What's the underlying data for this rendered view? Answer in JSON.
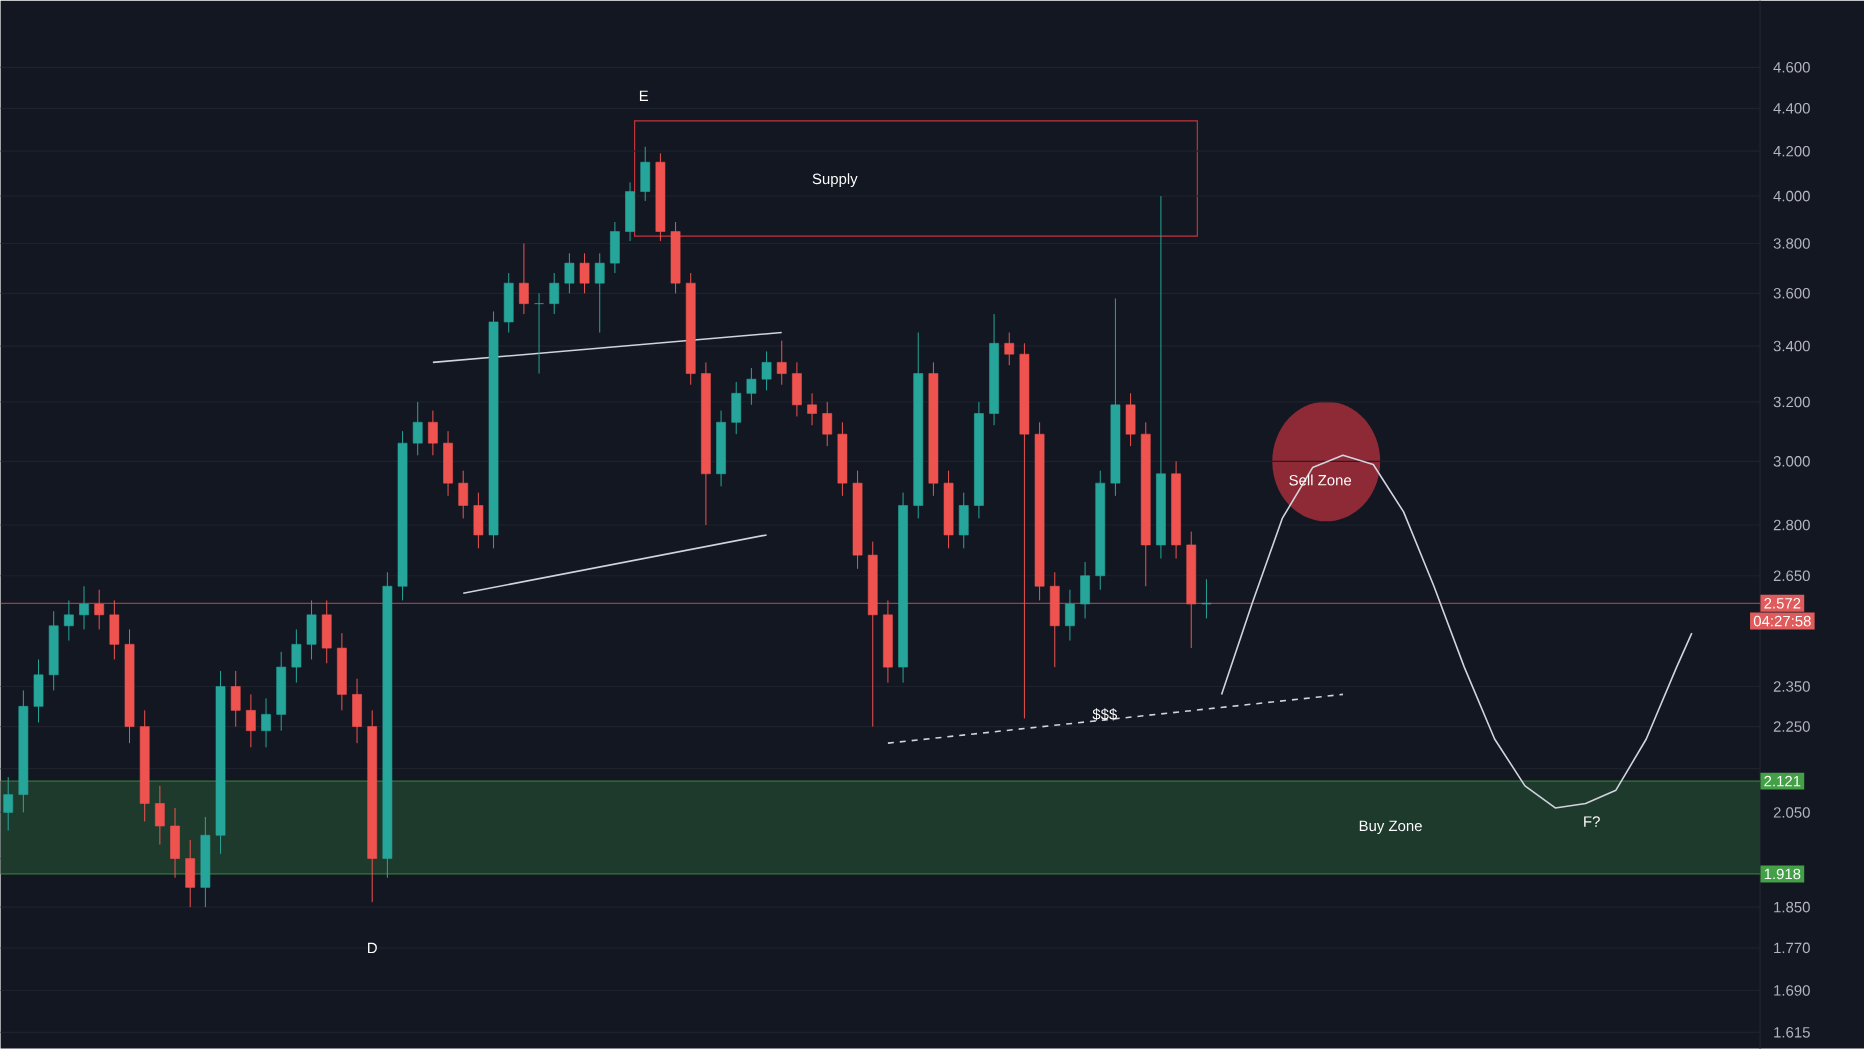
{
  "chart_data": {
    "type": "candlestick",
    "log": true,
    "grid": "y",
    "tick_labels": "y",
    "categories": [
      null,
      null,
      null,
      null,
      null,
      null,
      null,
      null,
      null,
      null,
      null,
      null,
      null,
      null,
      null,
      null,
      null,
      null,
      null,
      null,
      null,
      null,
      null,
      null,
      null,
      null,
      null,
      null,
      null,
      null,
      null,
      null,
      null,
      null,
      null,
      null,
      null,
      null,
      null,
      null,
      null,
      null,
      null,
      null,
      null,
      null,
      null,
      null,
      null,
      null,
      null,
      null,
      null,
      null,
      null,
      null,
      null,
      null,
      null,
      null,
      null,
      null,
      null,
      null,
      null,
      null,
      null,
      null,
      null,
      null,
      null,
      null,
      null,
      null,
      null,
      null,
      null,
      null,
      null,
      null,
      null,
      null,
      null,
      null,
      null,
      null,
      null,
      null,
      null,
      null,
      null,
      null,
      null,
      null,
      null,
      null,
      null,
      null,
      null,
      null,
      null,
      null,
      null,
      null,
      null,
      null,
      null,
      null,
      null,
      null,
      null,
      null,
      null,
      null,
      null,
      null
    ],
    "ohlc": [
      [
        2.05,
        2.13,
        2.01,
        2.09
      ],
      [
        2.09,
        2.34,
        2.05,
        2.3
      ],
      [
        2.3,
        2.42,
        2.26,
        2.38
      ],
      [
        2.38,
        2.55,
        2.34,
        2.51
      ],
      [
        2.51,
        2.58,
        2.47,
        2.54
      ],
      [
        2.54,
        2.62,
        2.5,
        2.57
      ],
      [
        2.57,
        2.61,
        2.5,
        2.54
      ],
      [
        2.54,
        2.58,
        2.42,
        2.46
      ],
      [
        2.46,
        2.5,
        2.21,
        2.25
      ],
      [
        2.25,
        2.29,
        2.03,
        2.07
      ],
      [
        2.07,
        2.11,
        1.98,
        2.02
      ],
      [
        2.02,
        2.06,
        1.91,
        1.95
      ],
      [
        1.95,
        1.99,
        1.85,
        1.89
      ],
      [
        1.89,
        2.04,
        1.85,
        2.0
      ],
      [
        2.0,
        2.39,
        1.96,
        2.35
      ],
      [
        2.35,
        2.39,
        2.25,
        2.29
      ],
      [
        2.29,
        2.33,
        2.2,
        2.24
      ],
      [
        2.24,
        2.32,
        2.2,
        2.28
      ],
      [
        2.28,
        2.44,
        2.24,
        2.4
      ],
      [
        2.4,
        2.5,
        2.36,
        2.46
      ],
      [
        2.46,
        2.58,
        2.42,
        2.54
      ],
      [
        2.54,
        2.58,
        2.41,
        2.45
      ],
      [
        2.45,
        2.49,
        2.29,
        2.33
      ],
      [
        2.33,
        2.37,
        2.21,
        2.25
      ],
      [
        2.25,
        2.29,
        1.86,
        1.95
      ],
      [
        1.95,
        2.66,
        1.91,
        2.62
      ],
      [
        2.62,
        3.1,
        2.58,
        3.06
      ],
      [
        3.06,
        3.2,
        3.02,
        3.13
      ],
      [
        3.13,
        3.17,
        3.02,
        3.06
      ],
      [
        3.06,
        3.1,
        2.89,
        2.93
      ],
      [
        2.93,
        2.97,
        2.82,
        2.86
      ],
      [
        2.86,
        2.9,
        2.73,
        2.77
      ],
      [
        2.77,
        3.53,
        2.73,
        3.49
      ],
      [
        3.49,
        3.68,
        3.45,
        3.64
      ],
      [
        3.64,
        3.8,
        3.52,
        3.56
      ],
      [
        3.56,
        3.6,
        3.3,
        3.56
      ],
      [
        3.56,
        3.68,
        3.52,
        3.64
      ],
      [
        3.64,
        3.76,
        3.6,
        3.72
      ],
      [
        3.72,
        3.76,
        3.6,
        3.64
      ],
      [
        3.64,
        3.76,
        3.45,
        3.72
      ],
      [
        3.72,
        3.89,
        3.68,
        3.85
      ],
      [
        3.85,
        4.06,
        3.81,
        4.02
      ],
      [
        4.02,
        4.22,
        3.98,
        4.15
      ],
      [
        4.15,
        4.19,
        3.81,
        3.85
      ],
      [
        3.85,
        3.89,
        3.6,
        3.64
      ],
      [
        3.64,
        3.68,
        3.26,
        3.3
      ],
      [
        3.3,
        3.34,
        2.8,
        2.96
      ],
      [
        2.96,
        3.17,
        2.92,
        3.13
      ],
      [
        3.13,
        3.27,
        3.09,
        3.23
      ],
      [
        3.23,
        3.32,
        3.19,
        3.28
      ],
      [
        3.28,
        3.38,
        3.24,
        3.34
      ],
      [
        3.34,
        3.42,
        3.26,
        3.3
      ],
      [
        3.3,
        3.34,
        3.15,
        3.19
      ],
      [
        3.19,
        3.23,
        3.12,
        3.16
      ],
      [
        3.16,
        3.2,
        3.05,
        3.09
      ],
      [
        3.09,
        3.13,
        2.89,
        2.93
      ],
      [
        2.93,
        2.97,
        2.67,
        2.71
      ],
      [
        2.71,
        2.75,
        2.25,
        2.54
      ],
      [
        2.54,
        2.58,
        2.36,
        2.4
      ],
      [
        2.4,
        2.9,
        2.36,
        2.86
      ],
      [
        2.86,
        3.45,
        2.82,
        3.3
      ],
      [
        3.3,
        3.34,
        2.89,
        2.93
      ],
      [
        2.93,
        2.97,
        2.73,
        2.77
      ],
      [
        2.77,
        2.9,
        2.73,
        2.86
      ],
      [
        2.86,
        3.2,
        2.82,
        3.16
      ],
      [
        3.16,
        3.52,
        3.12,
        3.41
      ],
      [
        3.41,
        3.45,
        3.33,
        3.37
      ],
      [
        3.37,
        3.41,
        2.27,
        3.09
      ],
      [
        3.09,
        3.13,
        2.58,
        2.62
      ],
      [
        2.62,
        2.66,
        2.4,
        2.51
      ],
      [
        2.51,
        2.61,
        2.47,
        2.57
      ],
      [
        2.57,
        2.69,
        2.53,
        2.65
      ],
      [
        2.65,
        2.97,
        2.61,
        2.93
      ],
      [
        2.93,
        3.58,
        2.89,
        3.19
      ],
      [
        3.19,
        3.23,
        3.05,
        3.09
      ],
      [
        3.09,
        3.13,
        2.62,
        2.74
      ],
      [
        2.74,
        4.0,
        2.7,
        2.96
      ],
      [
        2.96,
        3.0,
        2.7,
        2.74
      ],
      [
        2.74,
        2.78,
        2.45,
        2.57
      ],
      [
        2.57,
        2.64,
        2.53,
        2.572
      ],
      null,
      null,
      null,
      null,
      null,
      null,
      null,
      null,
      null,
      null,
      null,
      null,
      null,
      null,
      null,
      null,
      null,
      null,
      null,
      null,
      null,
      null,
      null,
      null,
      null,
      null,
      null,
      null,
      null,
      null,
      null,
      null,
      null,
      null,
      null,
      null
    ],
    "series": [
      {
        "type": "line",
        "color": "#d1d4dc",
        "values": [
          null,
          null,
          null,
          null,
          null,
          null,
          null,
          null,
          null,
          null,
          null,
          null,
          null,
          null,
          null,
          null,
          null,
          null,
          null,
          null,
          null,
          null,
          null,
          null,
          null,
          null,
          null,
          null,
          3.34,
          null,
          null,
          null,
          null,
          null,
          null,
          null,
          null,
          null,
          null,
          null,
          null,
          null,
          null,
          null,
          null,
          null,
          null,
          null,
          null,
          null,
          null,
          3.45,
          null,
          null,
          null,
          null,
          null,
          null,
          null,
          null,
          null,
          null,
          null,
          null,
          null,
          null,
          null,
          null,
          null,
          null,
          null,
          null,
          null,
          null,
          null,
          null,
          null,
          null,
          null,
          null,
          null,
          null,
          null,
          null,
          null,
          null,
          null,
          null,
          null,
          null,
          null,
          null,
          null,
          null,
          null,
          null,
          null,
          null,
          null,
          null,
          null,
          null,
          null,
          null,
          null,
          null,
          null,
          null,
          null,
          null,
          null,
          null,
          null,
          null,
          null,
          null
        ]
      },
      {
        "type": "line",
        "color": "#d1d4dc",
        "values": [
          null,
          null,
          null,
          null,
          null,
          null,
          null,
          null,
          null,
          null,
          null,
          null,
          null,
          null,
          null,
          null,
          null,
          null,
          null,
          null,
          null,
          null,
          null,
          null,
          null,
          null,
          null,
          null,
          null,
          null,
          2.6,
          null,
          null,
          null,
          null,
          null,
          null,
          null,
          null,
          null,
          null,
          null,
          null,
          null,
          null,
          null,
          null,
          null,
          null,
          null,
          2.77,
          null,
          null,
          null,
          null,
          null,
          null,
          null,
          null,
          null,
          null,
          null,
          null,
          null,
          null,
          null,
          null,
          null,
          null,
          null,
          null,
          null,
          null,
          null,
          null,
          null,
          null,
          null,
          null,
          null,
          null,
          null,
          null,
          null,
          null,
          null,
          null,
          null,
          null,
          null,
          null,
          null,
          null,
          null,
          null,
          null,
          null,
          null,
          null,
          null,
          null,
          null,
          null,
          null,
          null,
          null,
          null,
          null,
          null,
          null,
          null,
          null,
          null,
          null,
          null,
          null
        ]
      },
      {
        "type": "line",
        "color": "#d1d4dc",
        "line_style": "dashed",
        "values": [
          null,
          null,
          null,
          null,
          null,
          null,
          null,
          null,
          null,
          null,
          null,
          null,
          null,
          null,
          null,
          null,
          null,
          null,
          null,
          null,
          null,
          null,
          null,
          null,
          null,
          null,
          null,
          null,
          null,
          null,
          null,
          null,
          null,
          null,
          null,
          null,
          null,
          null,
          null,
          null,
          null,
          null,
          null,
          null,
          null,
          null,
          null,
          null,
          null,
          null,
          null,
          null,
          null,
          null,
          null,
          null,
          null,
          null,
          2.21,
          null,
          null,
          null,
          null,
          null,
          null,
          null,
          null,
          null,
          null,
          null,
          null,
          null,
          null,
          null,
          null,
          null,
          null,
          null,
          null,
          null,
          null,
          null,
          null,
          null,
          null,
          null,
          null,
          null,
          2.33,
          null,
          null,
          null,
          null,
          null,
          null,
          null,
          null,
          null,
          null,
          null,
          null,
          null,
          null,
          null,
          null,
          null,
          null,
          null,
          null,
          null,
          null,
          null,
          null,
          null,
          null,
          null
        ]
      },
      {
        "type": "line",
        "color": "#d1d4dc",
        "values": [
          null,
          null,
          null,
          null,
          null,
          null,
          null,
          null,
          null,
          null,
          null,
          null,
          null,
          null,
          null,
          null,
          null,
          null,
          null,
          null,
          null,
          null,
          null,
          null,
          null,
          null,
          null,
          null,
          null,
          null,
          null,
          null,
          null,
          null,
          null,
          null,
          null,
          null,
          null,
          null,
          null,
          null,
          null,
          null,
          null,
          null,
          null,
          null,
          null,
          null,
          null,
          null,
          null,
          null,
          null,
          null,
          null,
          null,
          null,
          null,
          null,
          null,
          null,
          null,
          null,
          null,
          null,
          null,
          null,
          null,
          null,
          null,
          null,
          null,
          null,
          null,
          null,
          null,
          null,
          null,
          2.33,
          null,
          2.57,
          null,
          2.82,
          null,
          2.98,
          null,
          3.02,
          null,
          2.99,
          null,
          2.84,
          null,
          2.62,
          null,
          2.4,
          null,
          2.22,
          null,
          2.11,
          null,
          2.06,
          null,
          2.07,
          null,
          2.1,
          null,
          2.22,
          null,
          2.4,
          2.49,
          null,
          null,
          null,
          null
        ]
      }
    ],
    "ylim": [
      1.587,
      4.944
    ],
    "yticks": [
      {
        "value": 1.615,
        "label": "1.615"
      },
      {
        "value": 1.69,
        "label": "1.690"
      },
      {
        "value": 1.77,
        "label": "1.770"
      },
      {
        "value": 1.85,
        "label": "1.850"
      },
      {
        "value": 1.95,
        "label": null
      },
      {
        "value": 2.05,
        "label": "2.050"
      },
      {
        "value": 2.15,
        "label": null
      },
      {
        "value": 2.25,
        "label": "2.250"
      },
      {
        "value": 2.35,
        "label": "2.350"
      },
      {
        "value": 2.65,
        "label": "2.650"
      },
      {
        "value": 2.8,
        "label": "2.800"
      },
      {
        "value": 3.0,
        "label": "3.000"
      },
      {
        "value": 3.2,
        "label": "3.200"
      },
      {
        "value": 3.4,
        "label": "3.400"
      },
      {
        "value": 3.6,
        "label": "3.600"
      },
      {
        "value": 3.8,
        "label": "3.800"
      },
      {
        "value": 4.0,
        "label": "4.000"
      },
      {
        "value": 4.2,
        "label": "4.200"
      },
      {
        "value": 4.4,
        "label": "4.400"
      },
      {
        "value": 4.6,
        "label": "4.600"
      }
    ],
    "bands": [
      {
        "axis": "y",
        "from": 1.918,
        "to": 2.121,
        "label": "Buy Zone",
        "color": "#1e3a2d"
      }
    ],
    "ref_lines": [
      {
        "axis": "y",
        "value": 2.121,
        "label": "2.121",
        "color": "#43a047"
      },
      {
        "axis": "y",
        "value": 1.918,
        "label": "1.918",
        "color": "#43a047"
      },
      {
        "axis": "y",
        "value": 2.572,
        "label": "2.572",
        "color": "#e05c5c"
      }
    ],
    "annotations": [
      "E",
      "D",
      "Supply",
      "Sell Zone",
      "$$$",
      "F?",
      "04:27:58"
    ]
  }
}
